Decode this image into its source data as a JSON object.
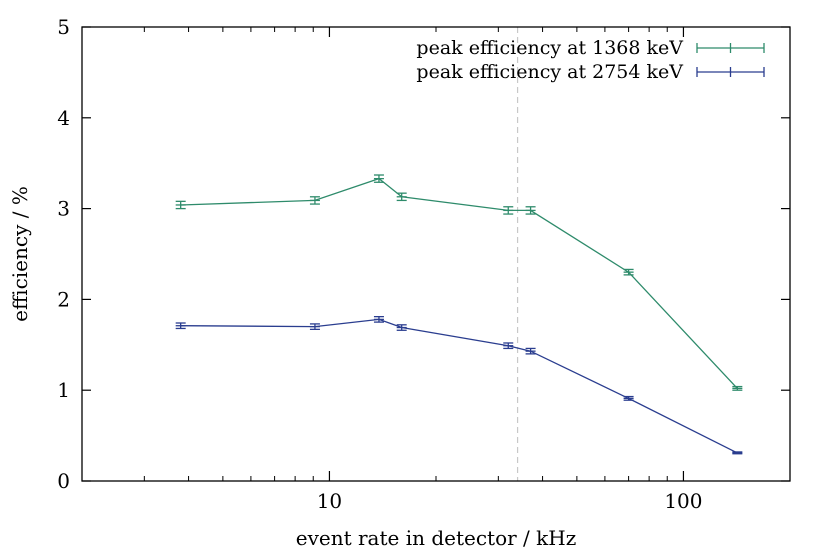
{
  "chart_data": {
    "type": "line",
    "title": "",
    "xlabel": "event rate in detector / kHz",
    "ylabel": "efficiency / %",
    "xscale": "log",
    "xlim": [
      2,
      200
    ],
    "ylim": [
      0,
      5
    ],
    "x_ticks": [
      {
        "value": 10,
        "label": "10"
      },
      {
        "value": 100,
        "label": "100"
      }
    ],
    "y_ticks": [
      {
        "value": 0,
        "label": "0"
      },
      {
        "value": 1,
        "label": "1"
      },
      {
        "value": 2,
        "label": "2"
      },
      {
        "value": 3,
        "label": "3"
      },
      {
        "value": 4,
        "label": "4"
      },
      {
        "value": 5,
        "label": "5"
      }
    ],
    "grid": false,
    "legend_position": "top-right",
    "reference_line": {
      "x": 34,
      "style": "dashed",
      "color": "#c8c8c8"
    },
    "series": [
      {
        "name": "peak efficiency at 1368 keV",
        "color": "#2e8b6b",
        "points": [
          {
            "x": 3.8,
            "y": 3.04,
            "err": 0.04
          },
          {
            "x": 9.1,
            "y": 3.09,
            "err": 0.04
          },
          {
            "x": 13.8,
            "y": 3.33,
            "err": 0.04
          },
          {
            "x": 16.0,
            "y": 3.13,
            "err": 0.04
          },
          {
            "x": 32.0,
            "y": 2.98,
            "err": 0.04
          },
          {
            "x": 37.0,
            "y": 2.98,
            "err": 0.04
          },
          {
            "x": 70.0,
            "y": 2.3,
            "err": 0.03
          },
          {
            "x": 142.0,
            "y": 1.02,
            "err": 0.02
          }
        ]
      },
      {
        "name": "peak efficiency at 2754 keV",
        "color": "#2a3d8f",
        "points": [
          {
            "x": 3.8,
            "y": 1.71,
            "err": 0.03
          },
          {
            "x": 9.1,
            "y": 1.7,
            "err": 0.03
          },
          {
            "x": 13.8,
            "y": 1.78,
            "err": 0.03
          },
          {
            "x": 16.0,
            "y": 1.69,
            "err": 0.03
          },
          {
            "x": 32.0,
            "y": 1.49,
            "err": 0.03
          },
          {
            "x": 37.0,
            "y": 1.43,
            "err": 0.03
          },
          {
            "x": 70.0,
            "y": 0.91,
            "err": 0.02
          },
          {
            "x": 142.0,
            "y": 0.31,
            "err": 0.01
          }
        ]
      }
    ]
  }
}
